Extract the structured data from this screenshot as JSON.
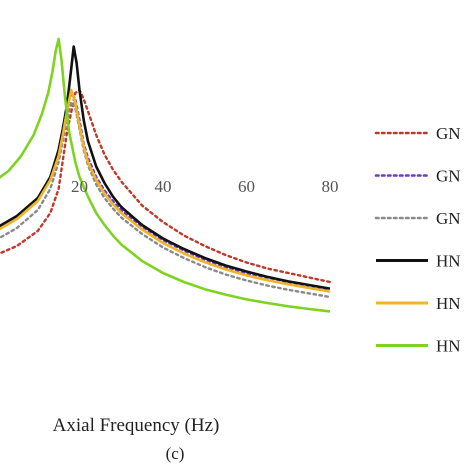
{
  "chart_data": {
    "type": "line",
    "xlabel": "Axial Frequency (Hz)",
    "caption": "(c)",
    "xlim": [
      0,
      80
    ],
    "xticks": [
      20,
      40,
      60,
      80
    ],
    "grid": false,
    "legend_position": "right",
    "series": [
      {
        "name": "GN",
        "color": "#c0392b",
        "style": "dotted",
        "x": [
          0,
          5,
          10,
          13,
          15,
          17,
          19,
          20,
          21,
          22,
          24,
          26,
          28,
          30,
          35,
          40,
          45,
          50,
          55,
          60,
          65,
          70,
          75,
          80
        ],
        "y": [
          0.25,
          0.28,
          0.33,
          0.39,
          0.47,
          0.66,
          0.79,
          0.8,
          0.77,
          0.73,
          0.65,
          0.585,
          0.535,
          0.495,
          0.415,
          0.36,
          0.315,
          0.28,
          0.25,
          0.225,
          0.205,
          0.19,
          0.175,
          0.16
        ]
      },
      {
        "name": "GN",
        "color": "#6a3fc8",
        "style": "dotted",
        "x": [
          0,
          5,
          10,
          13,
          15,
          16,
          17,
          18,
          19,
          20,
          21,
          22,
          24,
          26,
          28,
          30,
          35,
          40,
          45,
          50,
          55,
          60,
          65,
          70,
          75,
          80
        ],
        "y": [
          0.33,
          0.37,
          0.43,
          0.51,
          0.6,
          0.67,
          0.74,
          0.79,
          0.77,
          0.7,
          0.62,
          0.575,
          0.51,
          0.465,
          0.43,
          0.4,
          0.345,
          0.3,
          0.265,
          0.235,
          0.21,
          0.19,
          0.175,
          0.16,
          0.148,
          0.136
        ]
      },
      {
        "name": "GN",
        "color": "#8a8a8a",
        "style": "dotted",
        "x": [
          0,
          5,
          10,
          13,
          15,
          16,
          17,
          18,
          19,
          20,
          21,
          22,
          24,
          26,
          28,
          30,
          35,
          40,
          45,
          50,
          55,
          60,
          65,
          70,
          75,
          80
        ],
        "y": [
          0.3,
          0.34,
          0.4,
          0.47,
          0.56,
          0.63,
          0.7,
          0.76,
          0.74,
          0.67,
          0.6,
          0.55,
          0.485,
          0.44,
          0.405,
          0.375,
          0.32,
          0.275,
          0.24,
          0.21,
          0.185,
          0.165,
          0.148,
          0.134,
          0.122,
          0.11
        ]
      },
      {
        "name": "HN",
        "color": "#111111",
        "style": "solid",
        "x": [
          0,
          5,
          10,
          13,
          15,
          16,
          17,
          18,
          18.6,
          19.3,
          20,
          21,
          22,
          24,
          26,
          28,
          30,
          35,
          40,
          45,
          50,
          55,
          60,
          65,
          70,
          75,
          80
        ],
        "y": [
          0.34,
          0.38,
          0.44,
          0.51,
          0.6,
          0.67,
          0.75,
          0.87,
          0.945,
          0.89,
          0.8,
          0.7,
          0.63,
          0.545,
          0.49,
          0.445,
          0.41,
          0.35,
          0.305,
          0.27,
          0.24,
          0.215,
          0.195,
          0.177,
          0.162,
          0.15,
          0.138
        ]
      },
      {
        "name": "HN",
        "color": "#f0b429",
        "style": "solid",
        "x": [
          0,
          5,
          10,
          13,
          15,
          16,
          17,
          18,
          19,
          20,
          21,
          22,
          24,
          26,
          28,
          30,
          35,
          40,
          45,
          50,
          55,
          60,
          65,
          70,
          75,
          80
        ],
        "y": [
          0.33,
          0.37,
          0.43,
          0.5,
          0.58,
          0.65,
          0.73,
          0.8,
          0.76,
          0.68,
          0.61,
          0.56,
          0.5,
          0.455,
          0.42,
          0.39,
          0.335,
          0.29,
          0.255,
          0.226,
          0.202,
          0.182,
          0.166,
          0.152,
          0.14,
          0.128
        ]
      },
      {
        "name": "HN",
        "color": "#7ed321",
        "style": "solid",
        "x": [
          0,
          3,
          6,
          9,
          11,
          12.5,
          13.5,
          14.3,
          15,
          15.7,
          16.5,
          17.5,
          19,
          20,
          22,
          24,
          26,
          28,
          30,
          35,
          40,
          45,
          50,
          55,
          60,
          65,
          70,
          75,
          80
        ],
        "y": [
          0.5,
          0.53,
          0.58,
          0.65,
          0.72,
          0.79,
          0.86,
          0.93,
          0.97,
          0.9,
          0.78,
          0.66,
          0.56,
          0.51,
          0.445,
          0.39,
          0.35,
          0.315,
          0.285,
          0.23,
          0.19,
          0.16,
          0.136,
          0.118,
          0.102,
          0.09,
          0.079,
          0.07,
          0.062
        ]
      }
    ]
  }
}
